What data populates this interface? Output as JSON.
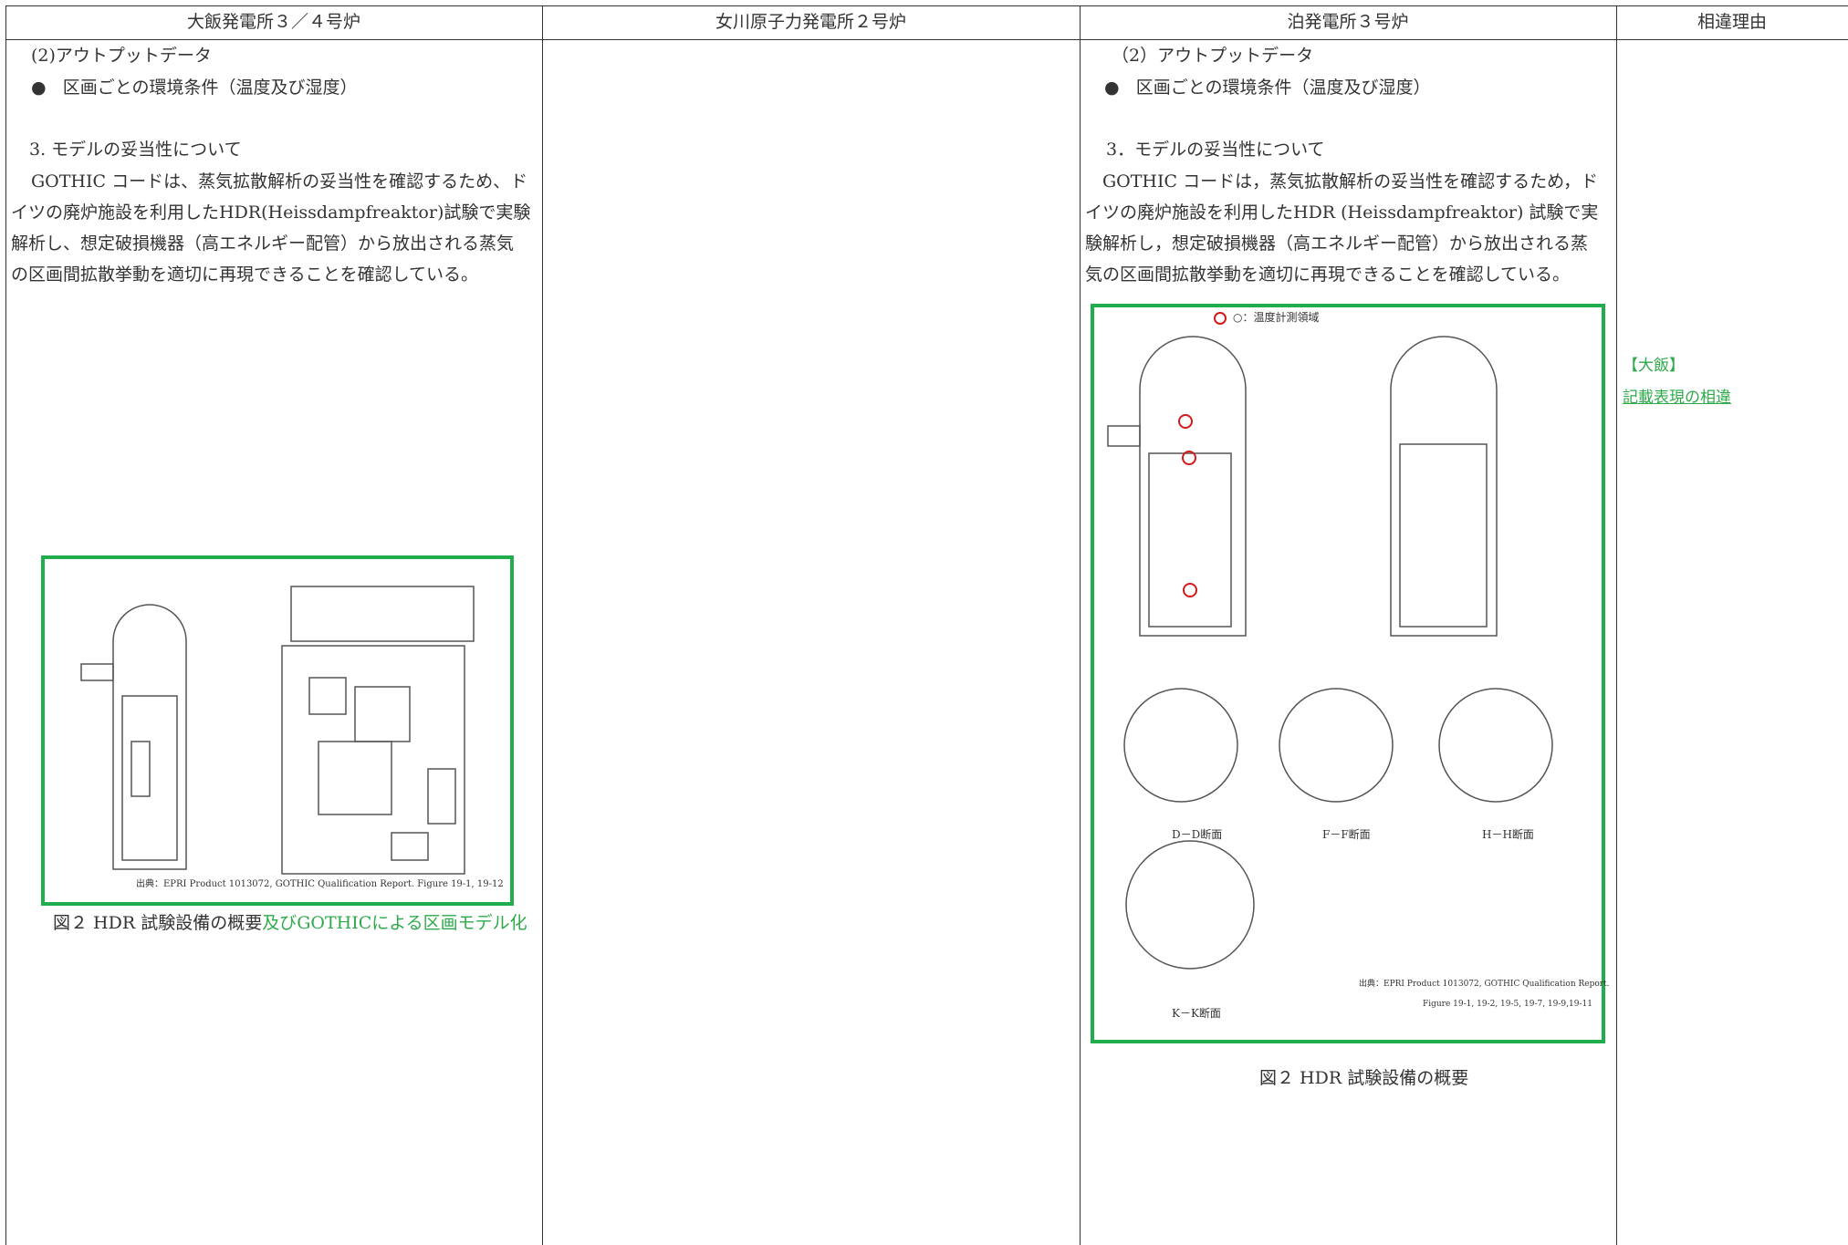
{
  "header": {
    "columns": [
      "大飯発電所３／４号炉",
      "女川原子力発電所２号炉",
      "泊発電所３号炉",
      "相違理由"
    ]
  },
  "left": {
    "heading": "(2)アウトプットデータ",
    "bullet": "区画ごとの環境条件（温度及び湿度）",
    "section": "3. モデルの妥当性について",
    "lines": [
      "GOTHIC コードは、蒸気拡散解析の妥当性を確認するため、ド",
      "イツの廃炉施設を利用したHDR(Heissdampfreaktor)試験で実験",
      "解析し、想定破損機器（高エネルギー配管）から放出される蒸気",
      "の区画間拡散挙動を適切に再現できることを確認している。"
    ],
    "figure_source": "出典：EPRI Product 1013072, GOTHIC Qualification Report. Figure 19-1, 19-12",
    "caption": [
      "図２ HDR 試験設備の概要",
      "及びGOTHICによる区画モデル化"
    ]
  },
  "right": {
    "heading": "（2）アウトプットデータ",
    "bullet": "区画ごとの環境条件（温度及び湿度）",
    "section": "3．モデルの妥当性について",
    "lines": [
      "GOTHIC コードは，蒸気拡散解析の妥当性を確認するため，ド",
      "イツの廃炉施設を利用したHDR (Heissdampfreaktor) 試験で実",
      "験解析し，想定破損機器（高エネルギー配管）から放出される蒸",
      "気の区画間拡散挙動を適切に再現できることを確認している。"
    ],
    "figure_legend": "○：温度計測領域",
    "sections": [
      "D－D断面",
      "F－F断面",
      "H－H断面",
      "K－K断面"
    ],
    "figure_source": [
      "出典：EPRI Product 1013072, GOTHIC Qualification Report.",
      "Figure 19-1, 19-2, 19-5, 19-7, 19-9,19-11"
    ],
    "caption": "図２ HDR 試験設備の概要"
  },
  "reason": {
    "tag": "【大飯】",
    "text": "記載表現の相違"
  }
}
